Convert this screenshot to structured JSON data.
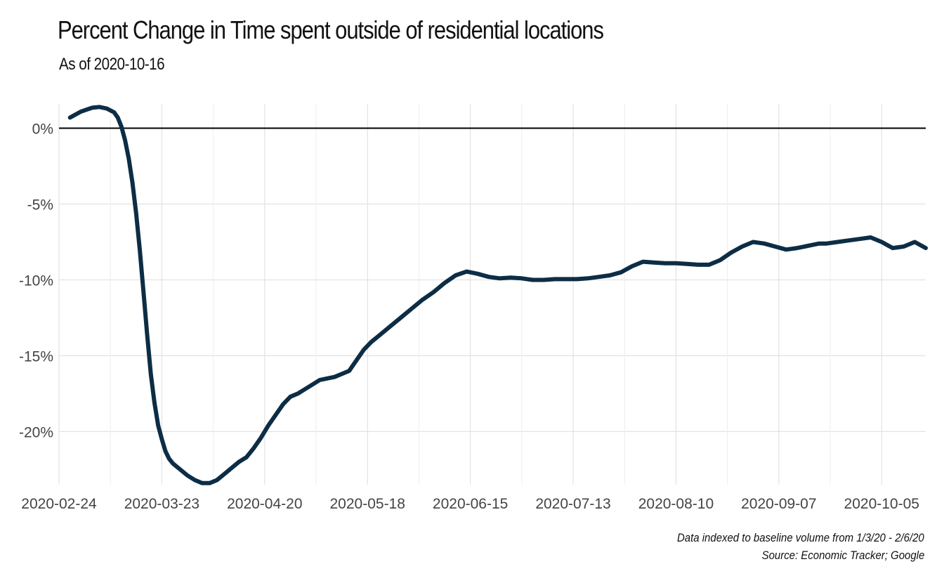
{
  "chart_data": {
    "type": "line",
    "title": "Percent Change in Time spent outside of residential locations",
    "subtitle": "As of 2020-10-16",
    "xlabel": "",
    "ylabel": "",
    "x_ticks": [
      "2020-02-24",
      "2020-03-23",
      "2020-04-20",
      "2020-05-18",
      "2020-06-15",
      "2020-07-13",
      "2020-08-10",
      "2020-09-07",
      "2020-10-05"
    ],
    "y_ticks": [
      "0%",
      "-5%",
      "-10%",
      "-15%",
      "-20%"
    ],
    "y_tick_values": [
      0,
      -5,
      -10,
      -15,
      -20
    ],
    "xlim": [
      "2020-02-24",
      "2020-10-17"
    ],
    "ylim": [
      -23.5,
      1.6
    ],
    "grid": true,
    "zero_line": true,
    "line_color": "#0d2d45",
    "series": [
      {
        "x": [
          "2020-02-27",
          "2020-03-01",
          "2020-03-04",
          "2020-03-06",
          "2020-03-08",
          "2020-03-10",
          "2020-03-11",
          "2020-03-12",
          "2020-03-13",
          "2020-03-14",
          "2020-03-15",
          "2020-03-16",
          "2020-03-17",
          "2020-03-18",
          "2020-03-19",
          "2020-03-20",
          "2020-03-21",
          "2020-03-22",
          "2020-03-23",
          "2020-03-24",
          "2020-03-25",
          "2020-03-26",
          "2020-03-28",
          "2020-03-30",
          "2020-04-01",
          "2020-04-03",
          "2020-04-05",
          "2020-04-07",
          "2020-04-09",
          "2020-04-11",
          "2020-04-13",
          "2020-04-15",
          "2020-04-17",
          "2020-04-19",
          "2020-04-21",
          "2020-04-23",
          "2020-04-25",
          "2020-04-27",
          "2020-04-29",
          "2020-05-01",
          "2020-05-03",
          "2020-05-05",
          "2020-05-07",
          "2020-05-09",
          "2020-05-11",
          "2020-05-13",
          "2020-05-15",
          "2020-05-17",
          "2020-05-19",
          "2020-05-21",
          "2020-05-24",
          "2020-05-27",
          "2020-05-30",
          "2020-06-02",
          "2020-06-05",
          "2020-06-08",
          "2020-06-11",
          "2020-06-14",
          "2020-06-17",
          "2020-06-20",
          "2020-06-23",
          "2020-06-26",
          "2020-06-29",
          "2020-07-02",
          "2020-07-05",
          "2020-07-08",
          "2020-07-11",
          "2020-07-14",
          "2020-07-17",
          "2020-07-20",
          "2020-07-23",
          "2020-07-26",
          "2020-07-29",
          "2020-08-01",
          "2020-08-04",
          "2020-08-07",
          "2020-08-10",
          "2020-08-13",
          "2020-08-16",
          "2020-08-19",
          "2020-08-22",
          "2020-08-25",
          "2020-08-28",
          "2020-08-31",
          "2020-09-03",
          "2020-09-06",
          "2020-09-09",
          "2020-09-12",
          "2020-09-14",
          "2020-09-16",
          "2020-09-18",
          "2020-09-20",
          "2020-09-23",
          "2020-09-26",
          "2020-09-29",
          "2020-10-02",
          "2020-10-05",
          "2020-10-08",
          "2020-10-11",
          "2020-10-14",
          "2020-10-17"
        ],
        "y": [
          0.7,
          1.1,
          1.35,
          1.4,
          1.3,
          1.05,
          0.7,
          0.1,
          -0.8,
          -2.0,
          -3.6,
          -5.6,
          -8.0,
          -10.8,
          -13.6,
          -16.2,
          -18.1,
          -19.6,
          -20.5,
          -21.3,
          -21.8,
          -22.1,
          -22.5,
          -22.9,
          -23.2,
          -23.4,
          -23.4,
          -23.2,
          -22.8,
          -22.4,
          -22.0,
          -21.7,
          -21.1,
          -20.4,
          -19.6,
          -18.9,
          -18.2,
          -17.7,
          -17.5,
          -17.2,
          -16.9,
          -16.6,
          -16.5,
          -16.4,
          -16.2,
          -16.0,
          -15.3,
          -14.6,
          -14.1,
          -13.7,
          -13.1,
          -12.5,
          -11.9,
          -11.3,
          -10.8,
          -10.2,
          -9.7,
          -9.45,
          -9.6,
          -9.8,
          -9.9,
          -9.85,
          -9.9,
          -10.0,
          -10.0,
          -9.95,
          -9.95,
          -9.95,
          -9.9,
          -9.8,
          -9.7,
          -9.5,
          -9.1,
          -8.8,
          -8.85,
          -8.9,
          -8.9,
          -8.95,
          -9.0,
          -9.0,
          -8.7,
          -8.2,
          -7.8,
          -7.5,
          -7.6,
          -7.8,
          -8.0,
          -7.9,
          -7.8,
          -7.7,
          -7.6,
          -7.6,
          -7.5,
          -7.4,
          -7.3,
          -7.2,
          -7.5,
          -7.9,
          -7.8,
          -7.5,
          -7.9
        ]
      }
    ]
  },
  "caption": {
    "note": "Data indexed to baseline volume from 1/3/20 - 2/6/20",
    "source": "Source: Economic Tracker; Google"
  }
}
